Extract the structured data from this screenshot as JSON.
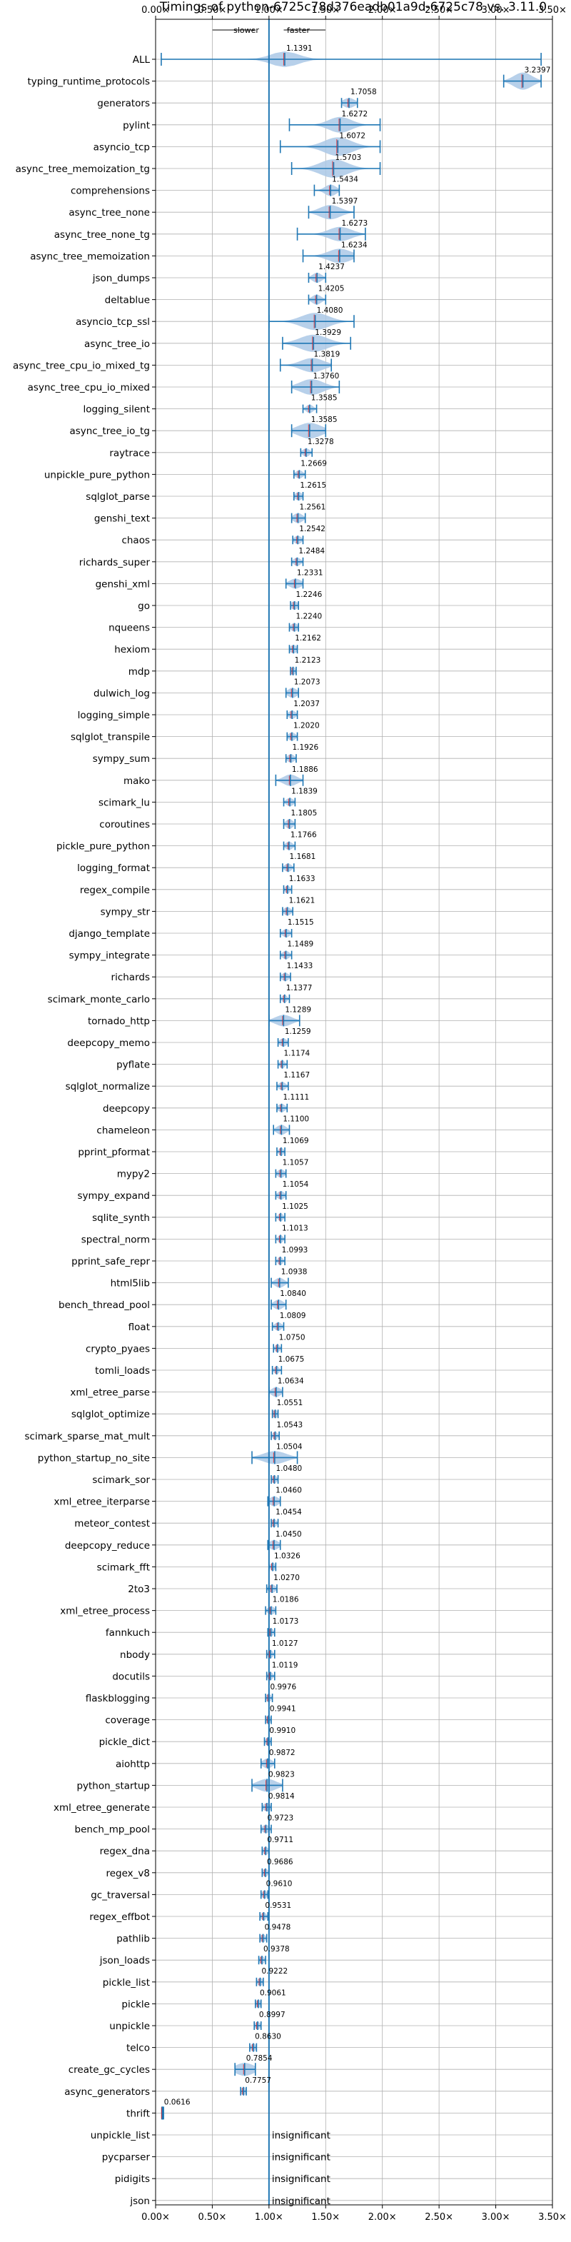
{
  "chart_data": {
    "type": "violin",
    "title": "Timings of python-6725c78d376eadb01a9d-6725c78 vs. 3.11.0",
    "annotation": {
      "left": "slower",
      "right": "faster"
    },
    "xlim": [
      0,
      3.5
    ],
    "xticks": [
      {
        "v": 0,
        "label": "0.00×"
      },
      {
        "v": 0.5,
        "label": "0.50×"
      },
      {
        "v": 1,
        "label": "1.00×"
      },
      {
        "v": 1.5,
        "label": "1.50×"
      },
      {
        "v": 2,
        "label": "2.00×"
      },
      {
        "v": 2.5,
        "label": "2.50×"
      },
      {
        "v": 3,
        "label": "3.00×"
      },
      {
        "v": 3.5,
        "label": "3.50×"
      }
    ],
    "reference_line": 1.0,
    "grid": true,
    "insignificant_label": "insignificant",
    "rows": [
      {
        "name": "ALL",
        "label": "1.1391",
        "value": 1.1391,
        "lo": 0.05,
        "hi": 3.4,
        "w": 0.12,
        "halfh": 11
      },
      {
        "name": "typing_runtime_protocols",
        "label": "3.2397",
        "value": 3.2397,
        "lo": 3.07,
        "hi": 3.4,
        "w": 0.08,
        "halfh": 12
      },
      {
        "name": "generators",
        "label": "1.7058",
        "value": 1.7058,
        "lo": 1.64,
        "hi": 1.78,
        "w": 0.05,
        "halfh": 7
      },
      {
        "name": "pylint",
        "label": "1.6272",
        "value": 1.6272,
        "lo": 1.18,
        "hi": 1.98,
        "w": 0.1,
        "halfh": 11
      },
      {
        "name": "asyncio_tcp",
        "label": "1.6072",
        "value": 1.6072,
        "lo": 1.1,
        "hi": 1.98,
        "w": 0.12,
        "halfh": 13
      },
      {
        "name": "async_tree_memoization_tg",
        "label": "1.5703",
        "value": 1.5703,
        "lo": 1.2,
        "hi": 1.98,
        "w": 0.12,
        "halfh": 13
      },
      {
        "name": "comprehensions",
        "label": "1.5434",
        "value": 1.5434,
        "lo": 1.4,
        "hi": 1.62,
        "w": 0.05,
        "halfh": 8
      },
      {
        "name": "async_tree_none",
        "label": "1.5397",
        "value": 1.5397,
        "lo": 1.35,
        "hi": 1.75,
        "w": 0.09,
        "halfh": 10
      },
      {
        "name": "async_tree_none_tg",
        "label": "1.6273",
        "value": 1.6273,
        "lo": 1.25,
        "hi": 1.85,
        "w": 0.1,
        "halfh": 10
      },
      {
        "name": "async_tree_memoization",
        "label": "1.6234",
        "value": 1.6234,
        "lo": 1.3,
        "hi": 1.75,
        "w": 0.1,
        "halfh": 10
      },
      {
        "name": "json_dumps",
        "label": "1.4237",
        "value": 1.4237,
        "lo": 1.35,
        "hi": 1.5,
        "w": 0.04,
        "halfh": 7
      },
      {
        "name": "deltablue",
        "label": "1.4205",
        "value": 1.4205,
        "lo": 1.35,
        "hi": 1.5,
        "w": 0.04,
        "halfh": 7
      },
      {
        "name": "asyncio_tcp_ssl",
        "label": "1.4080",
        "value": 1.408,
        "lo": 1.0,
        "hi": 1.75,
        "w": 0.12,
        "halfh": 12
      },
      {
        "name": "async_tree_io",
        "label": "1.3929",
        "value": 1.3929,
        "lo": 1.12,
        "hi": 1.72,
        "w": 0.12,
        "halfh": 12
      },
      {
        "name": "async_tree_cpu_io_mixed_tg",
        "label": "1.3819",
        "value": 1.3819,
        "lo": 1.1,
        "hi": 1.55,
        "w": 0.1,
        "halfh": 10
      },
      {
        "name": "async_tree_cpu_io_mixed",
        "label": "1.3760",
        "value": 1.376,
        "lo": 1.2,
        "hi": 1.62,
        "w": 0.1,
        "halfh": 11
      },
      {
        "name": "logging_silent",
        "label": "1.3585",
        "value": 1.3585,
        "lo": 1.3,
        "hi": 1.42,
        "w": 0.03,
        "halfh": 6
      },
      {
        "name": "async_tree_io_tg",
        "label": "1.3585",
        "value": 1.3585,
        "lo": 1.2,
        "hi": 1.5,
        "w": 0.1,
        "halfh": 11
      },
      {
        "name": "raytrace",
        "label": "1.3278",
        "value": 1.3278,
        "lo": 1.28,
        "hi": 1.38,
        "w": 0.03,
        "halfh": 6
      },
      {
        "name": "unpickle_pure_python",
        "label": "1.2669",
        "value": 1.2669,
        "lo": 1.22,
        "hi": 1.32,
        "w": 0.03,
        "halfh": 6
      },
      {
        "name": "sqlglot_parse",
        "label": "1.2615",
        "value": 1.2615,
        "lo": 1.22,
        "hi": 1.3,
        "w": 0.03,
        "halfh": 6
      },
      {
        "name": "genshi_text",
        "label": "1.2561",
        "value": 1.2561,
        "lo": 1.2,
        "hi": 1.32,
        "w": 0.04,
        "halfh": 7
      },
      {
        "name": "chaos",
        "label": "1.2542",
        "value": 1.2542,
        "lo": 1.21,
        "hi": 1.3,
        "w": 0.03,
        "halfh": 6
      },
      {
        "name": "richards_super",
        "label": "1.2484",
        "value": 1.2484,
        "lo": 1.2,
        "hi": 1.3,
        "w": 0.03,
        "halfh": 6
      },
      {
        "name": "genshi_xml",
        "label": "1.2331",
        "value": 1.2331,
        "lo": 1.15,
        "hi": 1.3,
        "w": 0.05,
        "halfh": 7
      },
      {
        "name": "go",
        "label": "1.2246",
        "value": 1.2246,
        "lo": 1.19,
        "hi": 1.26,
        "w": 0.03,
        "halfh": 6
      },
      {
        "name": "nqueens",
        "label": "1.2240",
        "value": 1.224,
        "lo": 1.18,
        "hi": 1.26,
        "w": 0.03,
        "halfh": 6
      },
      {
        "name": "hexiom",
        "label": "1.2162",
        "value": 1.2162,
        "lo": 1.18,
        "hi": 1.25,
        "w": 0.03,
        "halfh": 6
      },
      {
        "name": "mdp",
        "label": "1.2123",
        "value": 1.2123,
        "lo": 1.19,
        "hi": 1.24,
        "w": 0.02,
        "halfh": 6
      },
      {
        "name": "dulwich_log",
        "label": "1.2073",
        "value": 1.2073,
        "lo": 1.15,
        "hi": 1.26,
        "w": 0.04,
        "halfh": 7
      },
      {
        "name": "logging_simple",
        "label": "1.2037",
        "value": 1.2037,
        "lo": 1.16,
        "hi": 1.25,
        "w": 0.03,
        "halfh": 6
      },
      {
        "name": "sqlglot_transpile",
        "label": "1.2020",
        "value": 1.202,
        "lo": 1.16,
        "hi": 1.25,
        "w": 0.03,
        "halfh": 6
      },
      {
        "name": "sympy_sum",
        "label": "1.1926",
        "value": 1.1926,
        "lo": 1.15,
        "hi": 1.24,
        "w": 0.03,
        "halfh": 6
      },
      {
        "name": "mako",
        "label": "1.1886",
        "value": 1.1886,
        "lo": 1.06,
        "hi": 1.3,
        "w": 0.06,
        "halfh": 8
      },
      {
        "name": "scimark_lu",
        "label": "1.1839",
        "value": 1.1839,
        "lo": 1.13,
        "hi": 1.23,
        "w": 0.03,
        "halfh": 6
      },
      {
        "name": "coroutines",
        "label": "1.1805",
        "value": 1.1805,
        "lo": 1.13,
        "hi": 1.23,
        "w": 0.03,
        "halfh": 7
      },
      {
        "name": "pickle_pure_python",
        "label": "1.1766",
        "value": 1.1766,
        "lo": 1.13,
        "hi": 1.23,
        "w": 0.03,
        "halfh": 6
      },
      {
        "name": "logging_format",
        "label": "1.1681",
        "value": 1.1681,
        "lo": 1.12,
        "hi": 1.22,
        "w": 0.03,
        "halfh": 6
      },
      {
        "name": "regex_compile",
        "label": "1.1633",
        "value": 1.1633,
        "lo": 1.13,
        "hi": 1.2,
        "w": 0.02,
        "halfh": 6
      },
      {
        "name": "sympy_str",
        "label": "1.1621",
        "value": 1.1621,
        "lo": 1.12,
        "hi": 1.21,
        "w": 0.03,
        "halfh": 6
      },
      {
        "name": "django_template",
        "label": "1.1515",
        "value": 1.1515,
        "lo": 1.1,
        "hi": 1.2,
        "w": 0.03,
        "halfh": 6
      },
      {
        "name": "sympy_integrate",
        "label": "1.1489",
        "value": 1.1489,
        "lo": 1.1,
        "hi": 1.2,
        "w": 0.03,
        "halfh": 6
      },
      {
        "name": "richards",
        "label": "1.1433",
        "value": 1.1433,
        "lo": 1.1,
        "hi": 1.19,
        "w": 0.03,
        "halfh": 6
      },
      {
        "name": "scimark_monte_carlo",
        "label": "1.1377",
        "value": 1.1377,
        "lo": 1.1,
        "hi": 1.18,
        "w": 0.02,
        "halfh": 6
      },
      {
        "name": "tornado_http",
        "label": "1.1289",
        "value": 1.1289,
        "lo": 1.0,
        "hi": 1.27,
        "w": 0.07,
        "halfh": 8
      },
      {
        "name": "deepcopy_memo",
        "label": "1.1259",
        "value": 1.1259,
        "lo": 1.08,
        "hi": 1.17,
        "w": 0.03,
        "halfh": 6
      },
      {
        "name": "pyflate",
        "label": "1.1174",
        "value": 1.1174,
        "lo": 1.08,
        "hi": 1.16,
        "w": 0.02,
        "halfh": 6
      },
      {
        "name": "sqlglot_normalize",
        "label": "1.1167",
        "value": 1.1167,
        "lo": 1.07,
        "hi": 1.17,
        "w": 0.03,
        "halfh": 6
      },
      {
        "name": "deepcopy",
        "label": "1.1111",
        "value": 1.1111,
        "lo": 1.07,
        "hi": 1.16,
        "w": 0.03,
        "halfh": 6
      },
      {
        "name": "chameleon",
        "label": "1.1100",
        "value": 1.11,
        "lo": 1.04,
        "hi": 1.18,
        "w": 0.04,
        "halfh": 7
      },
      {
        "name": "pprint_pformat",
        "label": "1.1069",
        "value": 1.1069,
        "lo": 1.07,
        "hi": 1.14,
        "w": 0.02,
        "halfh": 6
      },
      {
        "name": "mypy2",
        "label": "1.1057",
        "value": 1.1057,
        "lo": 1.06,
        "hi": 1.15,
        "w": 0.03,
        "halfh": 6
      },
      {
        "name": "sympy_expand",
        "label": "1.1054",
        "value": 1.1054,
        "lo": 1.06,
        "hi": 1.15,
        "w": 0.03,
        "halfh": 6
      },
      {
        "name": "sqlite_synth",
        "label": "1.1025",
        "value": 1.1025,
        "lo": 1.06,
        "hi": 1.14,
        "w": 0.02,
        "halfh": 6
      },
      {
        "name": "spectral_norm",
        "label": "1.1013",
        "value": 1.1013,
        "lo": 1.06,
        "hi": 1.14,
        "w": 0.02,
        "halfh": 6
      },
      {
        "name": "pprint_safe_repr",
        "label": "1.0993",
        "value": 1.0993,
        "lo": 1.06,
        "hi": 1.14,
        "w": 0.02,
        "halfh": 6
      },
      {
        "name": "html5lib",
        "label": "1.0938",
        "value": 1.0938,
        "lo": 1.02,
        "hi": 1.17,
        "w": 0.04,
        "halfh": 7
      },
      {
        "name": "bench_thread_pool",
        "label": "1.0840",
        "value": 1.084,
        "lo": 1.02,
        "hi": 1.15,
        "w": 0.04,
        "halfh": 7
      },
      {
        "name": "float",
        "label": "1.0809",
        "value": 1.0809,
        "lo": 1.03,
        "hi": 1.13,
        "w": 0.03,
        "halfh": 6
      },
      {
        "name": "crypto_pyaes",
        "label": "1.0750",
        "value": 1.075,
        "lo": 1.04,
        "hi": 1.11,
        "w": 0.02,
        "halfh": 6
      },
      {
        "name": "tomli_loads",
        "label": "1.0675",
        "value": 1.0675,
        "lo": 1.03,
        "hi": 1.11,
        "w": 0.02,
        "halfh": 6
      },
      {
        "name": "xml_etree_parse",
        "label": "1.0634",
        "value": 1.0634,
        "lo": 1.0,
        "hi": 1.12,
        "w": 0.04,
        "halfh": 7
      },
      {
        "name": "sqlglot_optimize",
        "label": "1.0551",
        "value": 1.0551,
        "lo": 1.03,
        "hi": 1.08,
        "w": 0.02,
        "halfh": 6
      },
      {
        "name": "scimark_sparse_mat_mult",
        "label": "1.0543",
        "value": 1.0543,
        "lo": 1.02,
        "hi": 1.09,
        "w": 0.02,
        "halfh": 6
      },
      {
        "name": "python_startup_no_site",
        "label": "1.0504",
        "value": 1.0504,
        "lo": 0.85,
        "hi": 1.25,
        "w": 0.1,
        "halfh": 9
      },
      {
        "name": "scimark_sor",
        "label": "1.0480",
        "value": 1.048,
        "lo": 1.02,
        "hi": 1.08,
        "w": 0.02,
        "halfh": 6
      },
      {
        "name": "xml_etree_iterparse",
        "label": "1.0460",
        "value": 1.046,
        "lo": 0.99,
        "hi": 1.1,
        "w": 0.04,
        "halfh": 7
      },
      {
        "name": "meteor_contest",
        "label": "1.0454",
        "value": 1.0454,
        "lo": 1.02,
        "hi": 1.08,
        "w": 0.02,
        "halfh": 6
      },
      {
        "name": "deepcopy_reduce",
        "label": "1.0450",
        "value": 1.045,
        "lo": 0.99,
        "hi": 1.1,
        "w": 0.04,
        "halfh": 7
      },
      {
        "name": "scimark_fft",
        "label": "1.0326",
        "value": 1.0326,
        "lo": 1.0,
        "hi": 1.06,
        "w": 0.02,
        "halfh": 6
      },
      {
        "name": "2to3",
        "label": "1.0270",
        "value": 1.027,
        "lo": 0.98,
        "hi": 1.07,
        "w": 0.03,
        "halfh": 6
      },
      {
        "name": "xml_etree_process",
        "label": "1.0186",
        "value": 1.0186,
        "lo": 0.97,
        "hi": 1.06,
        "w": 0.03,
        "halfh": 6
      },
      {
        "name": "fannkuch",
        "label": "1.0173",
        "value": 1.0173,
        "lo": 0.99,
        "hi": 1.05,
        "w": 0.02,
        "halfh": 6
      },
      {
        "name": "nbody",
        "label": "1.0127",
        "value": 1.0127,
        "lo": 0.98,
        "hi": 1.05,
        "w": 0.02,
        "halfh": 6
      },
      {
        "name": "docutils",
        "label": "1.0119",
        "value": 1.0119,
        "lo": 0.98,
        "hi": 1.05,
        "w": 0.02,
        "halfh": 6
      },
      {
        "name": "flaskblogging",
        "label": "0.9976",
        "value": 0.9976,
        "lo": 0.97,
        "hi": 1.03,
        "w": 0.02,
        "halfh": 6
      },
      {
        "name": "coverage",
        "label": "0.9941",
        "value": 0.9941,
        "lo": 0.97,
        "hi": 1.02,
        "w": 0.02,
        "halfh": 6
      },
      {
        "name": "pickle_dict",
        "label": "0.9910",
        "value": 0.991,
        "lo": 0.96,
        "hi": 1.02,
        "w": 0.02,
        "halfh": 6
      },
      {
        "name": "aiohttp",
        "label": "0.9872",
        "value": 0.9872,
        "lo": 0.93,
        "hi": 1.05,
        "w": 0.04,
        "halfh": 7
      },
      {
        "name": "python_startup",
        "label": "0.9823",
        "value": 0.9823,
        "lo": 0.85,
        "hi": 1.12,
        "w": 0.08,
        "halfh": 9
      },
      {
        "name": "xml_etree_generate",
        "label": "0.9814",
        "value": 0.9814,
        "lo": 0.94,
        "hi": 1.02,
        "w": 0.03,
        "halfh": 6
      },
      {
        "name": "bench_mp_pool",
        "label": "0.9723",
        "value": 0.9723,
        "lo": 0.93,
        "hi": 1.02,
        "w": 0.03,
        "halfh": 6
      },
      {
        "name": "regex_dna",
        "label": "0.9711",
        "value": 0.9711,
        "lo": 0.94,
        "hi": 1.0,
        "w": 0.02,
        "halfh": 6
      },
      {
        "name": "regex_v8",
        "label": "0.9686",
        "value": 0.9686,
        "lo": 0.94,
        "hi": 1.0,
        "w": 0.02,
        "halfh": 6
      },
      {
        "name": "gc_traversal",
        "label": "0.9610",
        "value": 0.961,
        "lo": 0.93,
        "hi": 0.99,
        "w": 0.02,
        "halfh": 6
      },
      {
        "name": "regex_effbot",
        "label": "0.9531",
        "value": 0.9531,
        "lo": 0.92,
        "hi": 0.99,
        "w": 0.02,
        "halfh": 6
      },
      {
        "name": "pathlib",
        "label": "0.9478",
        "value": 0.9478,
        "lo": 0.92,
        "hi": 0.98,
        "w": 0.02,
        "halfh": 6
      },
      {
        "name": "json_loads",
        "label": "0.9378",
        "value": 0.9378,
        "lo": 0.91,
        "hi": 0.97,
        "w": 0.02,
        "halfh": 6
      },
      {
        "name": "pickle_list",
        "label": "0.9222",
        "value": 0.9222,
        "lo": 0.89,
        "hi": 0.95,
        "w": 0.02,
        "halfh": 6
      },
      {
        "name": "pickle",
        "label": "0.9061",
        "value": 0.9061,
        "lo": 0.88,
        "hi": 0.93,
        "w": 0.02,
        "halfh": 6
      },
      {
        "name": "unpickle",
        "label": "0.8997",
        "value": 0.8997,
        "lo": 0.87,
        "hi": 0.93,
        "w": 0.02,
        "halfh": 6
      },
      {
        "name": "telco",
        "label": "0.8630",
        "value": 0.863,
        "lo": 0.83,
        "hi": 0.89,
        "w": 0.02,
        "halfh": 6
      },
      {
        "name": "create_gc_cycles",
        "label": "0.7854",
        "value": 0.7854,
        "lo": 0.7,
        "hi": 0.88,
        "w": 0.08,
        "halfh": 9
      },
      {
        "name": "async_generators",
        "label": "0.7757",
        "value": 0.7757,
        "lo": 0.75,
        "hi": 0.8,
        "w": 0.02,
        "halfh": 6
      },
      {
        "name": "thrift",
        "label": "0.0616",
        "value": 0.0616,
        "lo": 0.055,
        "hi": 0.07,
        "w": 0.004,
        "halfh": 10
      },
      {
        "name": "unpickle_list",
        "insignificant": true
      },
      {
        "name": "pycparser",
        "insignificant": true
      },
      {
        "name": "pidigits",
        "insignificant": true
      },
      {
        "name": "json",
        "insignificant": true
      }
    ],
    "colors": {
      "violin": "#aac8e6",
      "line": "#1f77b4",
      "median": "#e41a1c",
      "grid": "#b0b0b0"
    }
  }
}
